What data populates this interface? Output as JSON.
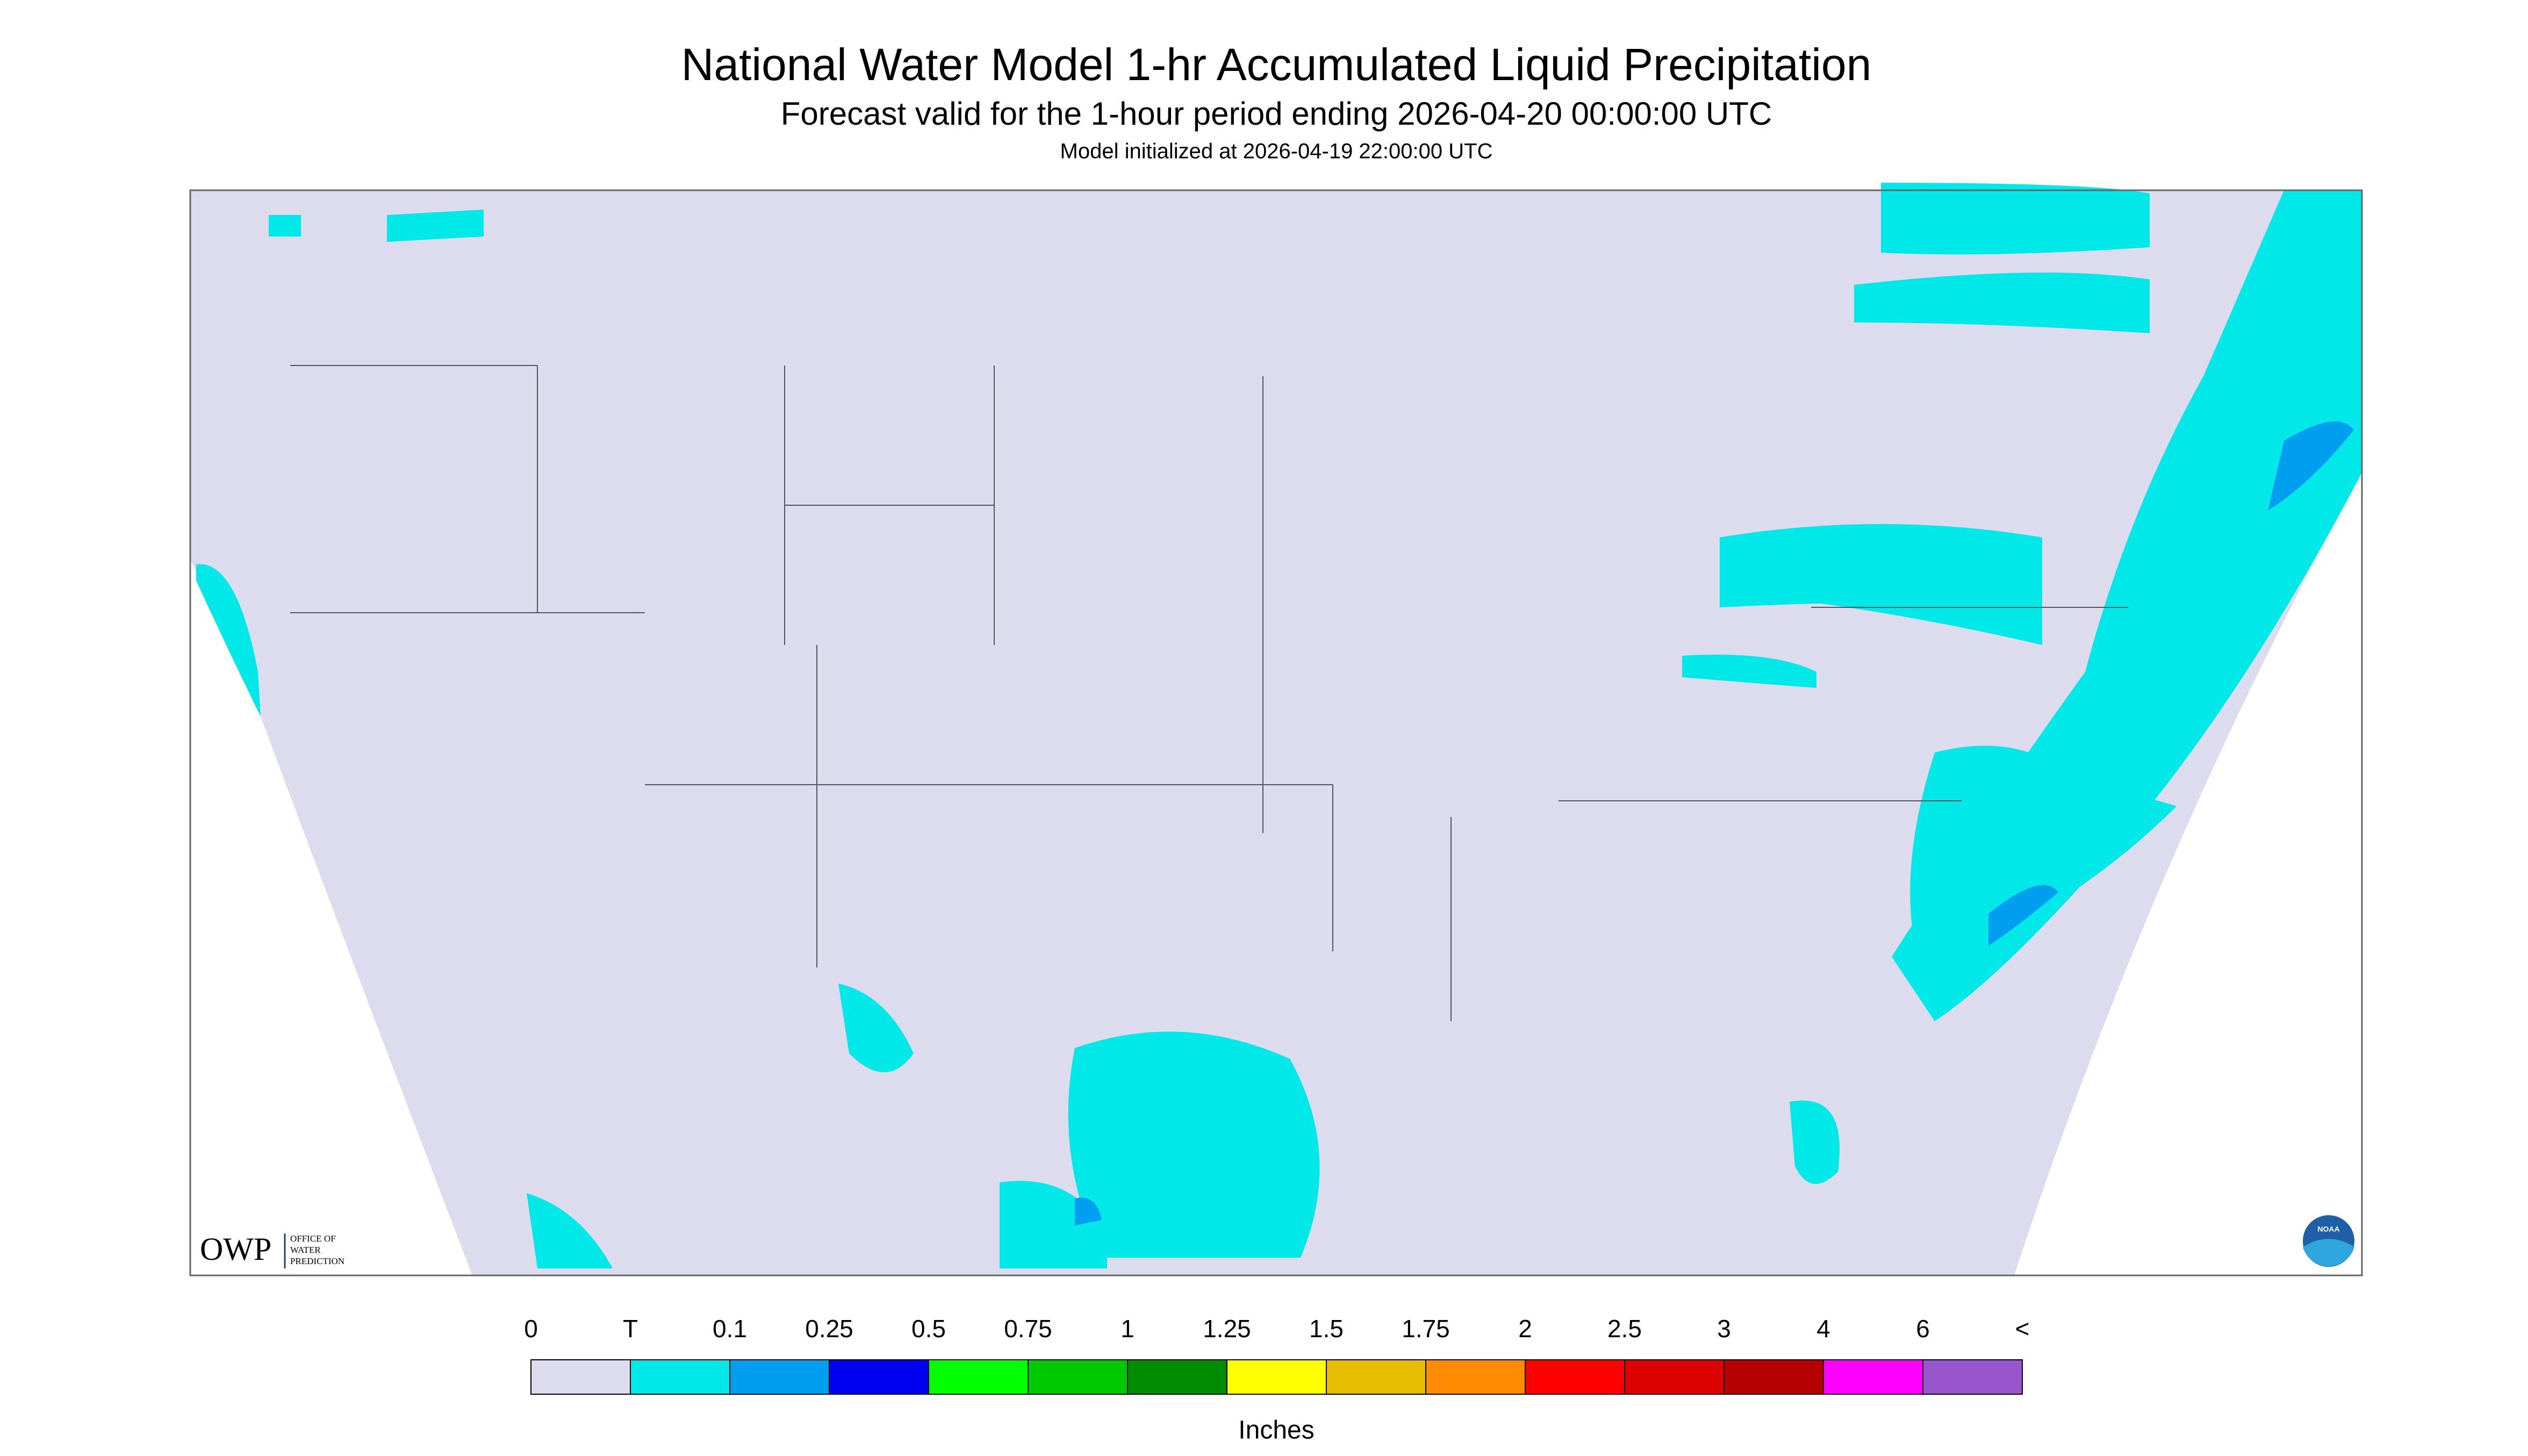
{
  "header": {
    "title": "National Water Model 1-hr Accumulated Liquid Precipitation",
    "subtitle": "Forecast valid for the 1-hour period ending 2026-04-20 00:00:00 UTC",
    "note": "Model initialized at 2026-04-19 22:00:00 UTC"
  },
  "logos": {
    "owp": "OWP",
    "owp_lines": [
      "OFFICE OF",
      "WATER",
      "PREDICTION"
    ],
    "noaa": "NOAA"
  },
  "legend": {
    "labels": [
      "0",
      "T",
      "0.1",
      "0.25",
      "0.5",
      "0.75",
      "1",
      "1.25",
      "1.5",
      "1.75",
      "2",
      "2.5",
      "3",
      "4",
      "6",
      "<"
    ],
    "colors": [
      "#dcdcee",
      "#00e8e8",
      "#009eef",
      "#0000f0",
      "#00ff00",
      "#00c800",
      "#008c00",
      "#ffff00",
      "#e6be00",
      "#ff8c00",
      "#ff0000",
      "#dc0000",
      "#b40000",
      "#ff00ff",
      "#9955cc"
    ],
    "units": "Inches"
  }
}
